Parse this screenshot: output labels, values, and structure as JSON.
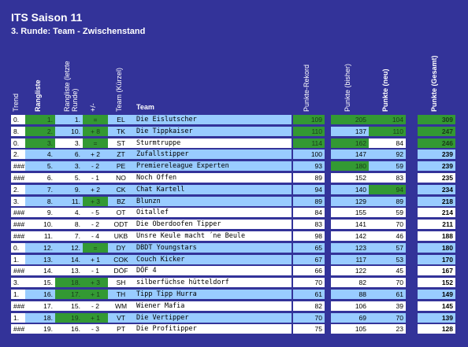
{
  "header": {
    "title": "ITS Saison 11",
    "subtitle": "3. Runde: Team - Zwischenstand"
  },
  "table": {
    "columns": [
      "Trend",
      "Rangliste",
      "Rangliste (letzte Runde)",
      "+/-",
      "Team (Kürzel)",
      "Team",
      "Punkte-Rekord",
      "Punkte (bisher)",
      "Punkte (neu)",
      "Punkte (Gesamt)"
    ],
    "rows": [
      [
        "0.",
        "1.",
        "1.",
        "=",
        "EL",
        "Die Eislutscher",
        109,
        205,
        104,
        309
      ],
      [
        "8.",
        "2.",
        "10.",
        "+ 8",
        "TK",
        "Die Tippkaiser",
        110,
        137,
        110,
        247
      ],
      [
        "0.",
        "3.",
        "3.",
        "=",
        "ST",
        "Sturmtruppe",
        114,
        162,
        84,
        246
      ],
      [
        "2.",
        "4.",
        "6.",
        "+ 2",
        "ZT",
        "Zufallstipper",
        100,
        147,
        92,
        239
      ],
      [
        "###",
        "5.",
        "3.",
        "- 2",
        "PE",
        "Premiereleague Experten",
        93,
        180,
        59,
        239
      ],
      [
        "###",
        "6.",
        "5.",
        "- 1",
        "NO",
        "Noch Offen",
        89,
        152,
        83,
        235
      ],
      [
        "2.",
        "7.",
        "9.",
        "+ 2",
        "CK",
        "Chat Kartell",
        94,
        140,
        94,
        234
      ],
      [
        "3.",
        "8.",
        "11.",
        "+ 3",
        "BZ",
        "Blunzn",
        89,
        129,
        89,
        218
      ],
      [
        "###",
        "9.",
        "4.",
        "- 5",
        "OT",
        "Oitallef",
        84,
        155,
        59,
        214
      ],
      [
        "###",
        "10.",
        "8.",
        "- 2",
        "ODT",
        "Die Oberdoofen Tipper",
        83,
        141,
        70,
        211
      ],
      [
        "###",
        "11.",
        "7.",
        "- 4",
        "UKB",
        "Unsre Keule macht ´ne Beule",
        98,
        142,
        46,
        188
      ],
      [
        "0.",
        "12.",
        "12.",
        "=",
        "DY",
        "DBDT Youngstars",
        65,
        123,
        57,
        180
      ],
      [
        "1.",
        "13.",
        "14.",
        "+ 1",
        "COK",
        "Couch Kicker",
        67,
        117,
        53,
        170
      ],
      [
        "###",
        "14.",
        "13.",
        "- 1",
        "DÖF",
        "DÖF 4",
        66,
        122,
        45,
        167
      ],
      [
        "3.",
        "15.",
        "18.",
        "+ 3",
        "SH",
        "silberfüchse hütteldorf",
        70,
        82,
        70,
        152
      ],
      [
        "1.",
        "16.",
        "17.",
        "+ 1",
        "TH",
        "Tipp Tipp Hurra",
        61,
        88,
        61,
        149
      ],
      [
        "###",
        "17.",
        "15.",
        "- 2",
        "WM",
        "Wiener Mafia",
        82,
        106,
        39,
        145
      ],
      [
        "1.",
        "18.",
        "19.",
        "+ 1",
        "VT",
        "Die Vertipper",
        70,
        69,
        70,
        139
      ],
      [
        "###",
        "19.",
        "16.",
        "- 3",
        "PT",
        "Die Profitipper",
        75,
        105,
        23,
        128
      ]
    ]
  }
}
